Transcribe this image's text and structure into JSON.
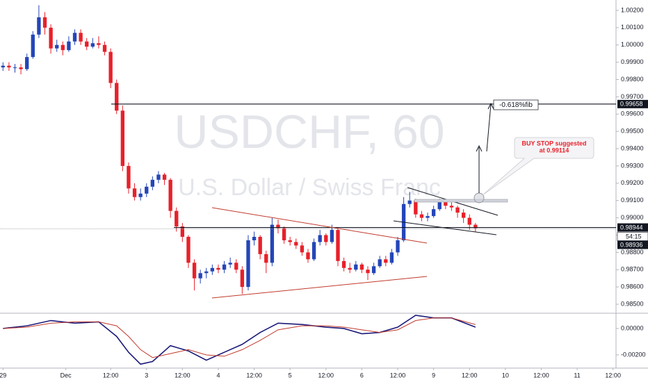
{
  "chart_data": [
    {
      "type": "candlestick",
      "watermark": "USDCHF, 60",
      "subtitle": "U.S. Dollar / Swiss Franc",
      "annotations": {
        "fib": "-0.618%fib",
        "buy_stop": [
          "BUY STOP suggested",
          "at 0.99114"
        ]
      },
      "up_color": "#2446b8",
      "down_color": "#e8202a",
      "grid": false,
      "xlim": [
        -0.5,
        102.5
      ],
      "ylim": [
        0.98452,
        1.0026
      ],
      "xticks": [
        {
          "value": 0,
          "label": "29"
        },
        {
          "value": 10.5,
          "label": "Dec"
        },
        {
          "value": 18,
          "label": "12:00"
        },
        {
          "value": 24,
          "label": "3"
        },
        {
          "value": 30,
          "label": "12:00"
        },
        {
          "value": 36,
          "label": "4"
        },
        {
          "value": 42,
          "label": "12:00"
        },
        {
          "value": 48,
          "label": "5"
        },
        {
          "value": 54,
          "label": "12:00"
        },
        {
          "value": 60,
          "label": "6"
        },
        {
          "value": 66,
          "label": "12:00"
        },
        {
          "value": 72,
          "label": "9"
        },
        {
          "value": 78,
          "label": "12:00"
        },
        {
          "value": 84,
          "label": "10"
        },
        {
          "value": 90,
          "label": "12:00"
        },
        {
          "value": 96,
          "label": "11"
        },
        {
          "value": 102,
          "label": "12:00"
        }
      ],
      "yticks": [
        {
          "value": 0.985,
          "label": "0.98500"
        },
        {
          "value": 0.986,
          "label": "0.98600"
        },
        {
          "value": 0.987,
          "label": "0.98700"
        },
        {
          "value": 0.988,
          "label": "0.98800"
        },
        {
          "value": 0.989,
          "label": "0.98900"
        },
        {
          "value": 0.99,
          "label": "0.99000"
        },
        {
          "value": 0.991,
          "label": "0.99100"
        },
        {
          "value": 0.992,
          "label": "0.99200"
        },
        {
          "value": 0.993,
          "label": "0.99300"
        },
        {
          "value": 0.994,
          "label": "0.99400"
        },
        {
          "value": 0.995,
          "label": "0.99500"
        },
        {
          "value": 0.996,
          "label": "0.99600"
        },
        {
          "value": 0.997,
          "label": "0.99700"
        },
        {
          "value": 0.998,
          "label": "0.99800"
        },
        {
          "value": 0.999,
          "label": "0.99900"
        },
        {
          "value": 1.0,
          "label": "1.00000"
        },
        {
          "value": 1.001,
          "label": "1.00100"
        },
        {
          "value": 1.002,
          "label": "1.00200"
        }
      ],
      "price_lines": [
        {
          "value": 0.99658,
          "label": "0.99658"
        },
        {
          "value": 0.98944,
          "label": "0.98944"
        }
      ],
      "last_price": {
        "value": 0.98936,
        "label": "0.98936"
      },
      "countdown": "54:15",
      "candles": [
        [
          0.9987,
          0.999,
          0.9985,
          0.9988
        ],
        [
          0.9988,
          0.999,
          0.9985,
          0.9987
        ],
        [
          0.9987,
          0.9989,
          0.9984,
          0.9987
        ],
        [
          0.9987,
          0.9989,
          0.9983,
          0.9986
        ],
        [
          0.9986,
          0.9995,
          0.9985,
          0.9993
        ],
        [
          0.9993,
          1.0008,
          0.9992,
          1.0006
        ],
        [
          1.0006,
          1.0023,
          1.0004,
          1.0016
        ],
        [
          1.0016,
          1.0019,
          1.0006,
          1.001
        ],
        [
          1.001,
          1.0012,
          0.9995,
          0.9998
        ],
        [
          0.9998,
          1.0003,
          0.9996,
          1.0
        ],
        [
          1.0,
          1.0002,
          0.9994,
          0.9997
        ],
        [
          0.9997,
          1.0005,
          0.9996,
          1.0002
        ],
        [
          1.0002,
          1.0009,
          1.0,
          1.0007
        ],
        [
          1.0007,
          1.0009,
          1.0,
          1.0002
        ],
        [
          1.0002,
          1.0004,
          0.9997,
          0.9999
        ],
        [
          0.9999,
          1.0004,
          0.9998,
          1.0001
        ],
        [
          1.0001,
          1.0005,
          0.9998,
          1.0
        ],
        [
          1.0,
          1.0002,
          0.9994,
          0.9996
        ],
        [
          0.9996,
          0.9998,
          0.9975,
          0.9978
        ],
        [
          0.9978,
          0.998,
          0.996,
          0.9962
        ],
        [
          0.9962,
          0.9965,
          0.9927,
          0.993
        ],
        [
          0.993,
          0.9932,
          0.9914,
          0.9917
        ],
        [
          0.9917,
          0.992,
          0.991,
          0.9912
        ],
        [
          0.9912,
          0.9917,
          0.991,
          0.9914
        ],
        [
          0.9914,
          0.992,
          0.9912,
          0.9918
        ],
        [
          0.9918,
          0.9924,
          0.9916,
          0.9922
        ],
        [
          0.9922,
          0.9927,
          0.992,
          0.9925
        ],
        [
          0.9925,
          0.9926,
          0.9919,
          0.9922
        ],
        [
          0.9922,
          0.9923,
          0.99,
          0.9904
        ],
        [
          0.9904,
          0.9906,
          0.9892,
          0.9895
        ],
        [
          0.9895,
          0.9897,
          0.9886,
          0.9889
        ],
        [
          0.9889,
          0.989,
          0.9871,
          0.9874
        ],
        [
          0.9874,
          0.9876,
          0.9858,
          0.9865
        ],
        [
          0.9865,
          0.987,
          0.9862,
          0.9868
        ],
        [
          0.9868,
          0.9871,
          0.9865,
          0.9869
        ],
        [
          0.9869,
          0.9873,
          0.9867,
          0.9871
        ],
        [
          0.9871,
          0.9873,
          0.9868,
          0.987
        ],
        [
          0.987,
          0.9875,
          0.9868,
          0.9873
        ],
        [
          0.9873,
          0.9877,
          0.9871,
          0.9874
        ],
        [
          0.9874,
          0.9876,
          0.9868,
          0.987
        ],
        [
          0.987,
          0.9872,
          0.9856,
          0.986
        ],
        [
          0.986,
          0.989,
          0.9858,
          0.9887
        ],
        [
          0.9887,
          0.9892,
          0.9884,
          0.9889
        ],
        [
          0.9889,
          0.989,
          0.9876,
          0.9879
        ],
        [
          0.9879,
          0.9881,
          0.9868,
          0.9874
        ],
        [
          0.9874,
          0.99,
          0.9872,
          0.9896
        ],
        [
          0.9896,
          0.9899,
          0.9891,
          0.9894
        ],
        [
          0.9894,
          0.9895,
          0.9885,
          0.9887
        ],
        [
          0.9887,
          0.9889,
          0.9884,
          0.9886
        ],
        [
          0.9886,
          0.9888,
          0.9882,
          0.9884
        ],
        [
          0.9884,
          0.9886,
          0.9878,
          0.988
        ],
        [
          0.988,
          0.9882,
          0.9874,
          0.9876
        ],
        [
          0.9876,
          0.9888,
          0.9875,
          0.9886
        ],
        [
          0.9886,
          0.9893,
          0.9884,
          0.989
        ],
        [
          0.989,
          0.9891,
          0.9884,
          0.9886
        ],
        [
          0.9886,
          0.9896,
          0.9885,
          0.9893
        ],
        [
          0.9893,
          0.9894,
          0.9872,
          0.9875
        ],
        [
          0.9875,
          0.9877,
          0.9869,
          0.9871
        ],
        [
          0.9871,
          0.9874,
          0.9868,
          0.987
        ],
        [
          0.987,
          0.9875,
          0.9869,
          0.9873
        ],
        [
          0.9873,
          0.9874,
          0.9868,
          0.987
        ],
        [
          0.987,
          0.9872,
          0.9864,
          0.9868
        ],
        [
          0.9868,
          0.9874,
          0.9867,
          0.9872
        ],
        [
          0.9872,
          0.9878,
          0.9871,
          0.9876
        ],
        [
          0.9876,
          0.9878,
          0.9872,
          0.9874
        ],
        [
          0.9874,
          0.9882,
          0.9873,
          0.988
        ],
        [
          0.988,
          0.9889,
          0.9878,
          0.9887
        ],
        [
          0.9887,
          0.9912,
          0.9886,
          0.9908
        ],
        [
          0.9908,
          0.9915,
          0.9906,
          0.991
        ],
        [
          0.991,
          0.9911,
          0.99,
          0.9902
        ],
        [
          0.9902,
          0.9904,
          0.9898,
          0.99
        ],
        [
          0.99,
          0.9903,
          0.9898,
          0.9901
        ],
        [
          0.9901,
          0.9907,
          0.99,
          0.9905
        ],
        [
          0.9905,
          0.9911,
          0.9904,
          0.9909
        ],
        [
          0.9909,
          0.991,
          0.9905,
          0.9907
        ],
        [
          0.9907,
          0.9909,
          0.9904,
          0.9906
        ],
        [
          0.9906,
          0.9907,
          0.99,
          0.9903
        ],
        [
          0.9903,
          0.9905,
          0.9897,
          0.99
        ],
        [
          0.99,
          0.9902,
          0.9893,
          0.9896
        ],
        [
          0.9896,
          0.9897,
          0.9892,
          0.9894
        ]
      ]
    },
    {
      "type": "line",
      "xlim": [
        -0.5,
        102.5
      ],
      "ylim": [
        -0.00284,
        0.0011
      ],
      "yticks": [
        {
          "value": 0,
          "label": "0.00000"
        },
        {
          "value": -0.002,
          "label": "-0.00200"
        }
      ],
      "x": [
        0,
        4,
        8,
        12,
        16,
        19,
        21,
        23,
        25,
        28,
        31,
        34,
        37,
        40,
        43,
        46,
        50,
        54,
        57,
        60,
        63,
        66,
        69,
        72,
        75,
        79
      ],
      "series": [
        {
          "color": "#1a1a7a",
          "values": [
            0.0,
            0.0002,
            0.0006,
            0.0004,
            0.0005,
            -0.0006,
            -0.0018,
            -0.0027,
            -0.0025,
            -0.0013,
            -0.0017,
            -0.0024,
            -0.0018,
            -0.0012,
            -0.0003,
            0.0004,
            0.0003,
            0.0001,
            0.0,
            -0.0004,
            -0.0003,
            0.0001,
            0.001,
            0.0008,
            0.0008,
            0.0001
          ]
        },
        {
          "color": "#c0392b",
          "values": [
            0.0,
            0.0001,
            0.0004,
            0.0005,
            0.0005,
            0.0002,
            -0.0006,
            -0.0016,
            -0.0022,
            -0.0019,
            -0.0016,
            -0.002,
            -0.0021,
            -0.0016,
            -0.0009,
            -0.0001,
            0.0002,
            0.0002,
            0.0001,
            -0.0001,
            -0.0003,
            -0.0001,
            0.0006,
            0.0008,
            0.0008,
            0.0003
          ]
        }
      ]
    }
  ]
}
